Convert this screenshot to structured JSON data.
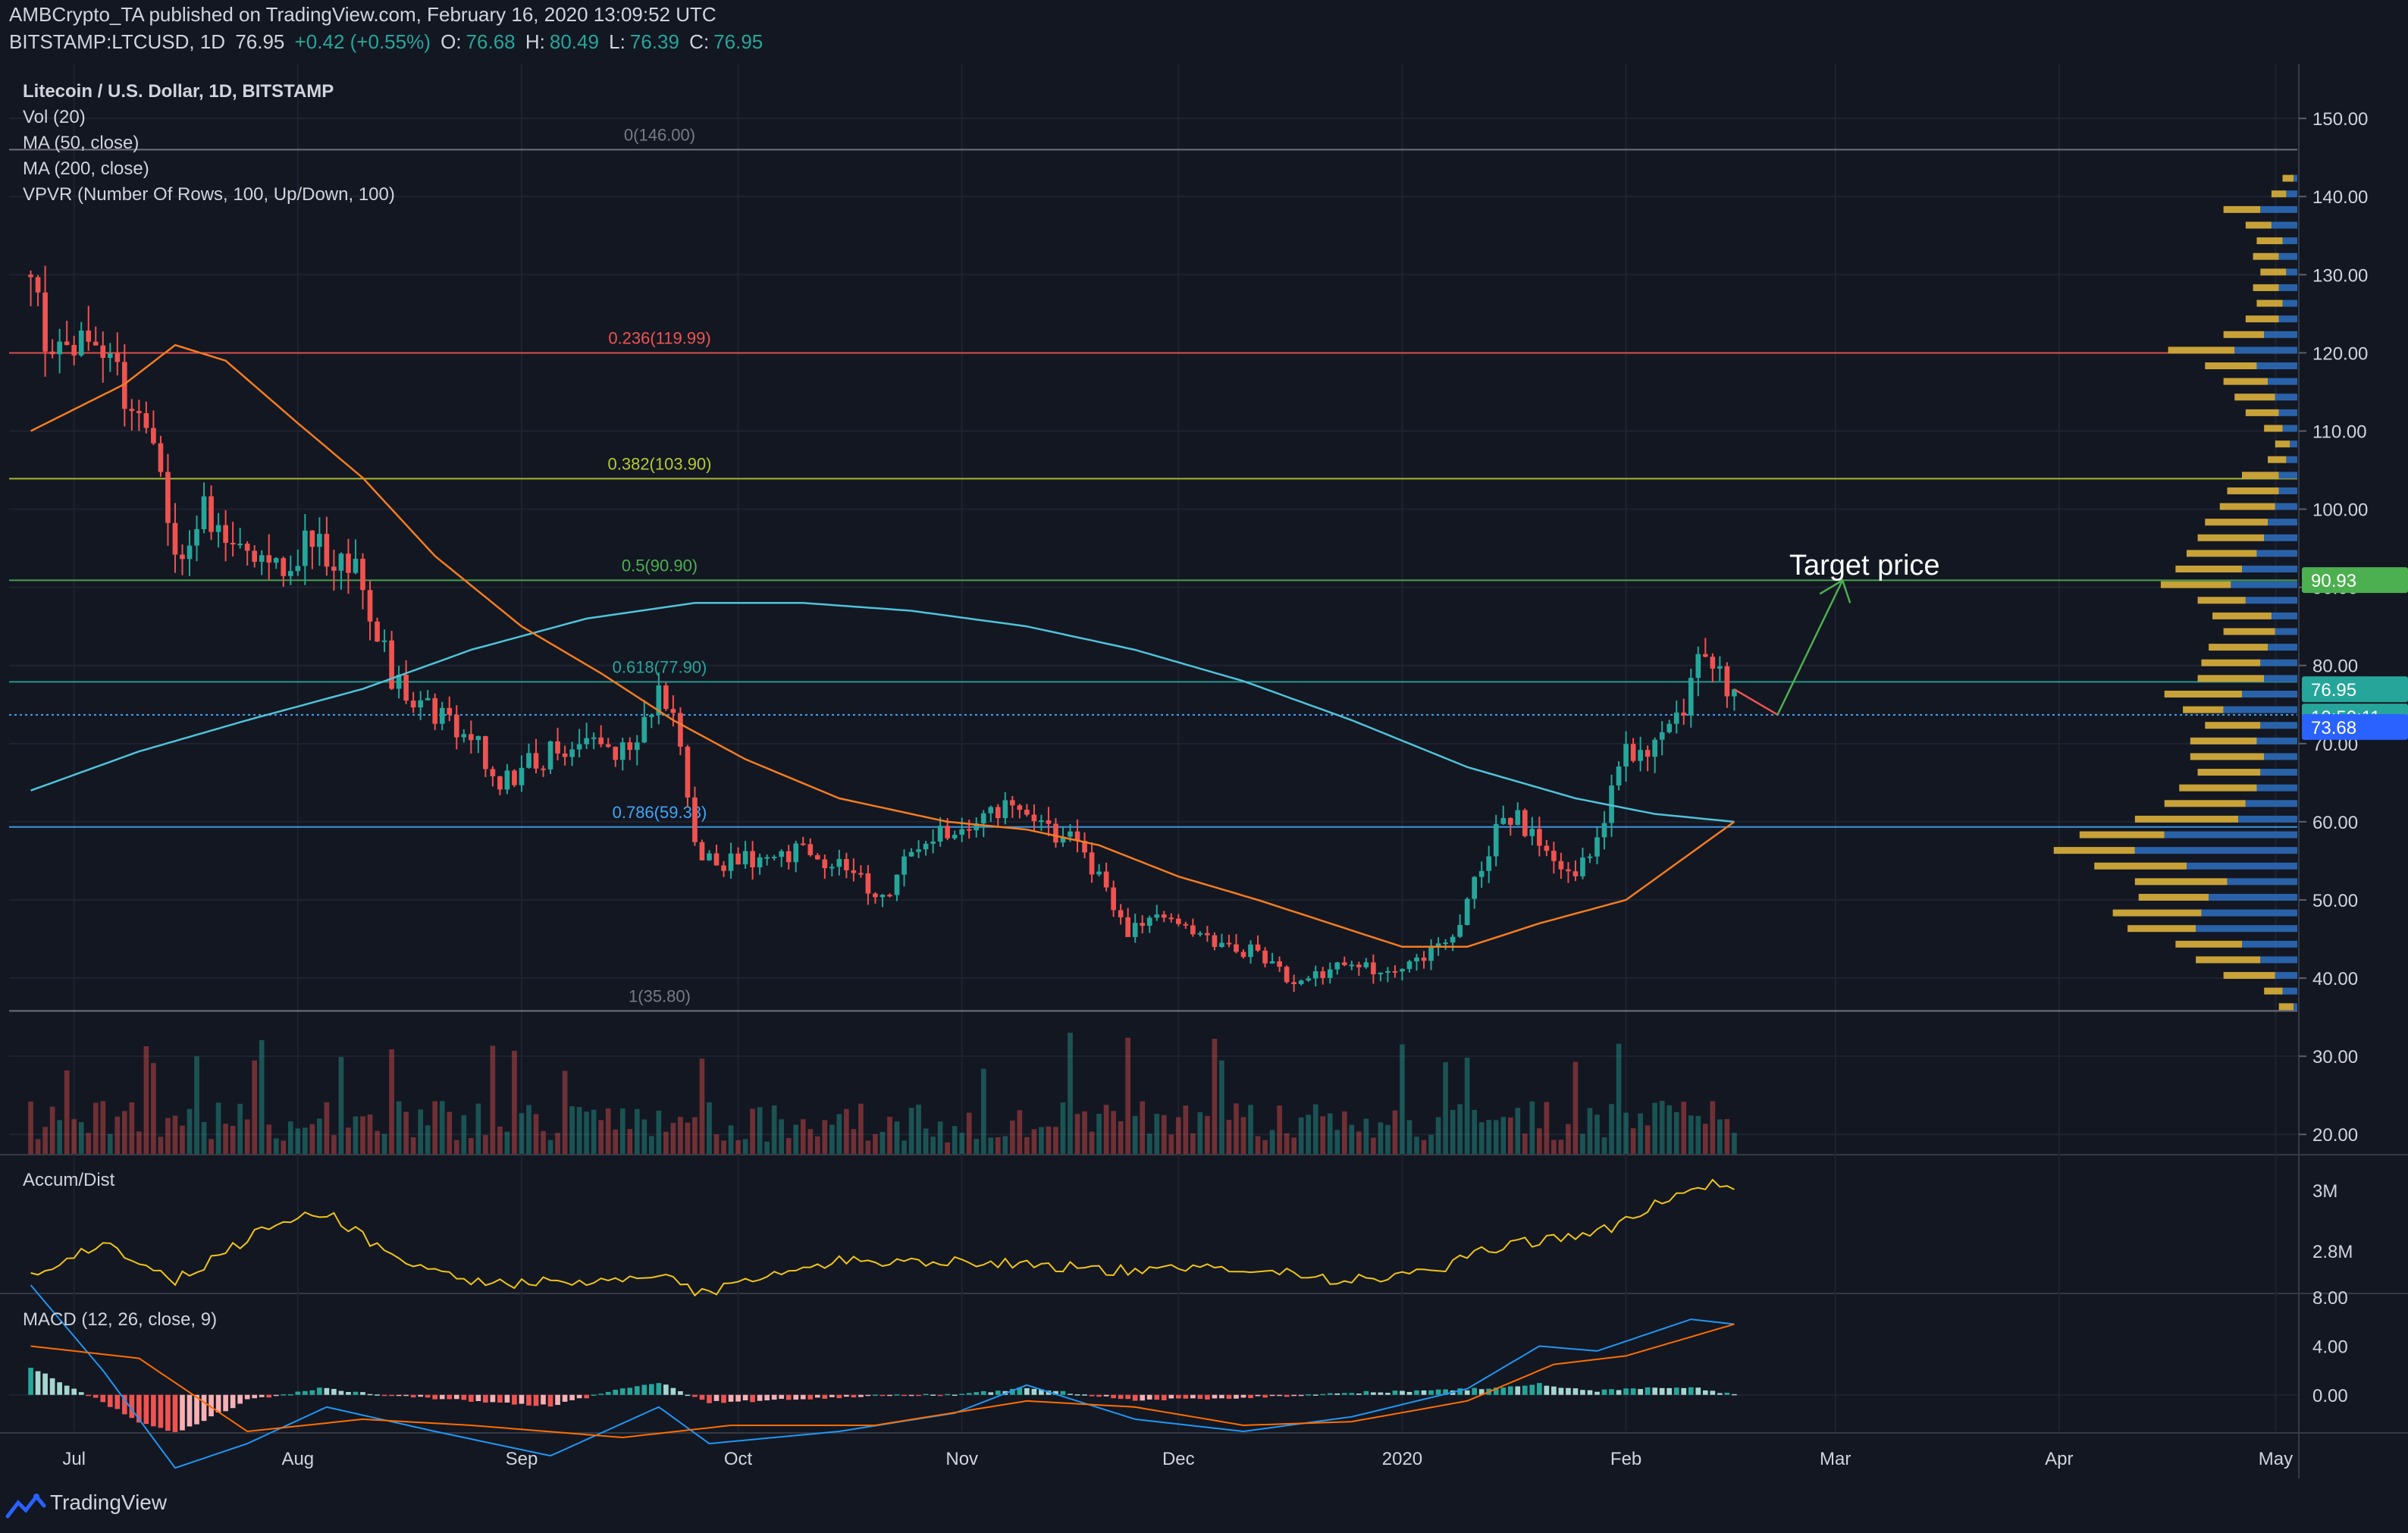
{
  "header": {
    "published": "AMBCrypto_TA published on TradingView.com, February 16, 2020 13:09:52 UTC",
    "symbol": "BITSTAMP:LTCUSD, 1D",
    "last": "76.95",
    "change": "+0.42 (+0.55%)",
    "o_label": "O:",
    "o": "76.68",
    "h_label": "H:",
    "h": "80.49",
    "l_label": "L:",
    "l": "76.39",
    "c_label": "C:",
    "c": "76.95"
  },
  "legend": {
    "title": "Litecoin / U.S. Dollar, 1D, BITSTAMP",
    "vol": "Vol (20)",
    "ma50": "MA (50, close)",
    "ma200": "MA (200, close)",
    "vpvr": "VPVR (Number Of Rows, 100, Up/Down, 100)"
  },
  "annotation": {
    "target": "Target price"
  },
  "price_badges": {
    "target": "90.93",
    "last": "76.95",
    "countdown": "10:50:11",
    "ma": "73.68"
  },
  "colors": {
    "bg": "#131722",
    "up": "#26a69a",
    "down": "#ef5350",
    "ma50": "#f57c20",
    "ma200": "#4fc3d9",
    "vpvr_up": "#2962a8",
    "vpvr_down": "#c8a238",
    "accum": "#f0c419",
    "macd": "#2196f3",
    "signal": "#ff6d00"
  },
  "footer": {
    "brand": "TradingView",
    "logo_icon": "tradingview-logo-icon"
  },
  "chart_data": [
    {
      "type": "candlestick",
      "name": "Litecoin / U.S. Dollar, 1D, BITSTAMP",
      "x_ticks": [
        "Jul",
        "Aug",
        "Sep",
        "Oct",
        "Nov",
        "Dec",
        "2020",
        "Feb",
        "Mar",
        "Apr",
        "May"
      ],
      "y_ticks": [
        "150.00",
        "140.00",
        "130.00",
        "120.00",
        "110.00",
        "100.00",
        "90.00",
        "80.00",
        "70.00",
        "60.00",
        "50.00",
        "40.00",
        "30.00",
        "20.00"
      ],
      "ylim": [
        17.5,
        157
      ],
      "fib_levels": [
        {
          "label": "0(146.00)",
          "value": 146.0,
          "color": "#787b86"
        },
        {
          "label": "0.236(119.99)",
          "value": 119.99,
          "color": "#ef5350"
        },
        {
          "label": "0.382(103.90)",
          "value": 103.9,
          "color": "#b7c934"
        },
        {
          "label": "0.5(90.90)",
          "value": 90.9,
          "color": "#4caf50"
        },
        {
          "label": "0.618(77.90)",
          "value": 77.9,
          "color": "#26a69a"
        },
        {
          "label": "0.786(59.33)",
          "value": 59.33,
          "color": "#42a5f5"
        },
        {
          "label": "1(35.80)",
          "value": 35.8,
          "color": "#787b86"
        }
      ],
      "close_anchors": [
        [
          "2019-06-25",
          130
        ],
        [
          "2019-06-28",
          118
        ],
        [
          "2019-07-03",
          122
        ],
        [
          "2019-07-08",
          115
        ],
        [
          "2019-07-12",
          110
        ],
        [
          "2019-07-15",
          93
        ],
        [
          "2019-07-19",
          100
        ],
        [
          "2019-07-24",
          94
        ],
        [
          "2019-07-29",
          92
        ],
        [
          "2019-08-03",
          96
        ],
        [
          "2019-08-06",
          94
        ],
        [
          "2019-08-10",
          91
        ],
        [
          "2019-08-14",
          78
        ],
        [
          "2019-08-17",
          75
        ],
        [
          "2019-08-21",
          73
        ],
        [
          "2019-08-25",
          71
        ],
        [
          "2019-08-29",
          65
        ],
        [
          "2019-09-03",
          68
        ],
        [
          "2019-09-08",
          70
        ],
        [
          "2019-09-15",
          69
        ],
        [
          "2019-09-20",
          76
        ],
        [
          "2019-09-23",
          71
        ],
        [
          "2019-09-25",
          57
        ],
        [
          "2019-09-28",
          55
        ],
        [
          "2019-10-04",
          55
        ],
        [
          "2019-10-10",
          56
        ],
        [
          "2019-10-16",
          54
        ],
        [
          "2019-10-22",
          50
        ],
        [
          "2019-10-25",
          57
        ],
        [
          "2019-10-29",
          59
        ],
        [
          "2019-11-04",
          60
        ],
        [
          "2019-11-08",
          62
        ],
        [
          "2019-11-11",
          59
        ],
        [
          "2019-11-16",
          58
        ],
        [
          "2019-11-20",
          53
        ],
        [
          "2019-11-24",
          46
        ],
        [
          "2019-11-30",
          48
        ],
        [
          "2019-12-06",
          45
        ],
        [
          "2019-12-12",
          43
        ],
        [
          "2019-12-17",
          39
        ],
        [
          "2019-12-22",
          41
        ],
        [
          "2019-12-28",
          41
        ],
        [
          "2020-01-01",
          42
        ],
        [
          "2020-01-05",
          43
        ],
        [
          "2020-01-08",
          45
        ],
        [
          "2020-01-10",
          50
        ],
        [
          "2020-01-14",
          59
        ],
        [
          "2020-01-17",
          60
        ],
        [
          "2020-01-20",
          58
        ],
        [
          "2020-01-24",
          53
        ],
        [
          "2020-01-27",
          55
        ],
        [
          "2020-02-01",
          69
        ],
        [
          "2020-02-05",
          70
        ],
        [
          "2020-02-09",
          74
        ],
        [
          "2020-02-11",
          83
        ],
        [
          "2020-02-14",
          79
        ],
        [
          "2020-02-16",
          76.95
        ]
      ],
      "ma50_anchors": [
        [
          "2019-06-25",
          110
        ],
        [
          "2019-07-08",
          116
        ],
        [
          "2019-07-15",
          121
        ],
        [
          "2019-07-22",
          119
        ],
        [
          "2019-08-01",
          111
        ],
        [
          "2019-08-10",
          104
        ],
        [
          "2019-08-20",
          94
        ],
        [
          "2019-09-01",
          85
        ],
        [
          "2019-09-12",
          79
        ],
        [
          "2019-09-22",
          73
        ],
        [
          "2019-10-02",
          68
        ],
        [
          "2019-10-15",
          63
        ],
        [
          "2019-10-30",
          60
        ],
        [
          "2019-11-10",
          59
        ],
        [
          "2019-11-20",
          57
        ],
        [
          "2019-12-01",
          53
        ],
        [
          "2019-12-12",
          50
        ],
        [
          "2019-12-22",
          47
        ],
        [
          "2020-01-01",
          44
        ],
        [
          "2020-01-10",
          44
        ],
        [
          "2020-01-20",
          47
        ],
        [
          "2020-02-01",
          50
        ],
        [
          "2020-02-10",
          56
        ],
        [
          "2020-02-16",
          60
        ]
      ],
      "ma200_anchors": [
        [
          "2019-06-25",
          64
        ],
        [
          "2019-07-10",
          69
        ],
        [
          "2019-07-25",
          73
        ],
        [
          "2019-08-10",
          77
        ],
        [
          "2019-08-25",
          82
        ],
        [
          "2019-09-10",
          86
        ],
        [
          "2019-09-25",
          88
        ],
        [
          "2019-10-10",
          88
        ],
        [
          "2019-10-25",
          87
        ],
        [
          "2019-11-10",
          85
        ],
        [
          "2019-11-25",
          82
        ],
        [
          "2019-12-10",
          78
        ],
        [
          "2019-12-25",
          73
        ],
        [
          "2020-01-10",
          67
        ],
        [
          "2020-01-25",
          63
        ],
        [
          "2020-02-05",
          61
        ],
        [
          "2020-02-16",
          60
        ]
      ],
      "target_arrow": [
        [
          "2020-02-16",
          76.95
        ],
        [
          "2020-02-22",
          73.7
        ],
        [
          "2020-03-02",
          90.9
        ]
      ],
      "vpvr_profile": [
        [
          36,
          10,
          2
        ],
        [
          38,
          18,
          8
        ],
        [
          40,
          40,
          12
        ],
        [
          42,
          55,
          20
        ],
        [
          44,
          66,
          30
        ],
        [
          46,
          92,
          55
        ],
        [
          48,
          100,
          52
        ],
        [
          50,
          86,
          48
        ],
        [
          52,
          88,
          38
        ],
        [
          54,
          110,
          60
        ],
        [
          56,
          132,
          88
        ],
        [
          58,
          118,
          72
        ],
        [
          60,
          88,
          32
        ],
        [
          62,
          72,
          28
        ],
        [
          64,
          64,
          22
        ],
        [
          66,
          54,
          20
        ],
        [
          68,
          58,
          18
        ],
        [
          70,
          58,
          22
        ],
        [
          72,
          50,
          20
        ],
        [
          74,
          62,
          40
        ],
        [
          76,
          72,
          30
        ],
        [
          78,
          54,
          18
        ],
        [
          80,
          52,
          20
        ],
        [
          82,
          48,
          16
        ],
        [
          84,
          40,
          12
        ],
        [
          86,
          46,
          14
        ],
        [
          88,
          54,
          28
        ],
        [
          90,
          74,
          36
        ],
        [
          92,
          66,
          30
        ],
        [
          94,
          60,
          22
        ],
        [
          96,
          54,
          18
        ],
        [
          98,
          50,
          16
        ],
        [
          100,
          42,
          12
        ],
        [
          102,
          38,
          10
        ],
        [
          104,
          30,
          10
        ],
        [
          106,
          16,
          6
        ],
        [
          108,
          12,
          4
        ],
        [
          110,
          18,
          8
        ],
        [
          112,
          28,
          10
        ],
        [
          114,
          34,
          12
        ],
        [
          116,
          40,
          16
        ],
        [
          118,
          50,
          22
        ],
        [
          120,
          70,
          34
        ],
        [
          122,
          40,
          18
        ],
        [
          124,
          28,
          10
        ],
        [
          126,
          22,
          8
        ],
        [
          128,
          24,
          10
        ],
        [
          130,
          20,
          6
        ],
        [
          132,
          24,
          10
        ],
        [
          134,
          22,
          8
        ],
        [
          136,
          28,
          14
        ],
        [
          138,
          40,
          20
        ],
        [
          140,
          14,
          6
        ],
        [
          142,
          8,
          2
        ]
      ]
    },
    {
      "type": "line",
      "name": "Accum/Dist",
      "y_ticks": [
        "3M",
        "2.8M"
      ],
      "anchors": [
        [
          "2019-06-25",
          2.72
        ],
        [
          "2019-07-05",
          2.83
        ],
        [
          "2019-07-15",
          2.7
        ],
        [
          "2019-07-28",
          2.88
        ],
        [
          "2019-08-05",
          2.93
        ],
        [
          "2019-08-15",
          2.77
        ],
        [
          "2019-08-25",
          2.7
        ],
        [
          "2019-09-10",
          2.69
        ],
        [
          "2019-09-22",
          2.72
        ],
        [
          "2019-09-25",
          2.65
        ],
        [
          "2019-10-10",
          2.76
        ],
        [
          "2019-10-25",
          2.77
        ],
        [
          "2019-11-10",
          2.76
        ],
        [
          "2019-11-25",
          2.73
        ],
        [
          "2019-12-10",
          2.75
        ],
        [
          "2019-12-25",
          2.7
        ],
        [
          "2020-01-05",
          2.73
        ],
        [
          "2020-01-15",
          2.82
        ],
        [
          "2020-01-30",
          2.87
        ],
        [
          "2020-02-10",
          3.02
        ],
        [
          "2020-02-16",
          3.01
        ]
      ]
    },
    {
      "type": "bar",
      "name": "MACD (12, 26, close, 9)",
      "y_ticks": [
        "8.00",
        "4.00",
        "0.00"
      ],
      "ylim": [
        -3,
        8.2
      ],
      "macd_anchors": [
        [
          "2019-06-25",
          9
        ],
        [
          "2019-07-05",
          2
        ],
        [
          "2019-07-15",
          -6
        ],
        [
          "2019-07-25",
          -4
        ],
        [
          "2019-08-05",
          -1
        ],
        [
          "2019-08-20",
          -3
        ],
        [
          "2019-09-05",
          -5
        ],
        [
          "2019-09-20",
          -1
        ],
        [
          "2019-09-27",
          -4
        ],
        [
          "2019-10-15",
          -3
        ],
        [
          "2019-10-31",
          -1.5
        ],
        [
          "2019-11-10",
          0.8
        ],
        [
          "2019-11-25",
          -2
        ],
        [
          "2019-12-10",
          -3
        ],
        [
          "2019-12-25",
          -1.8
        ],
        [
          "2020-01-10",
          0.5
        ],
        [
          "2020-01-20",
          4
        ],
        [
          "2020-01-28",
          3.6
        ],
        [
          "2020-02-10",
          6.2
        ],
        [
          "2020-02-16",
          5.8
        ]
      ],
      "signal_anchors": [
        [
          "2019-06-25",
          4
        ],
        [
          "2019-07-10",
          3
        ],
        [
          "2019-07-25",
          -3
        ],
        [
          "2019-08-10",
          -2
        ],
        [
          "2019-08-25",
          -2.5
        ],
        [
          "2019-09-15",
          -3.5
        ],
        [
          "2019-09-30",
          -2.5
        ],
        [
          "2019-10-20",
          -2.5
        ],
        [
          "2019-11-10",
          -0.5
        ],
        [
          "2019-11-25",
          -1
        ],
        [
          "2019-12-10",
          -2.5
        ],
        [
          "2019-12-25",
          -2.2
        ],
        [
          "2020-01-10",
          -0.5
        ],
        [
          "2020-01-22",
          2.5
        ],
        [
          "2020-02-01",
          3.2
        ],
        [
          "2020-02-16",
          5.8
        ]
      ]
    }
  ]
}
